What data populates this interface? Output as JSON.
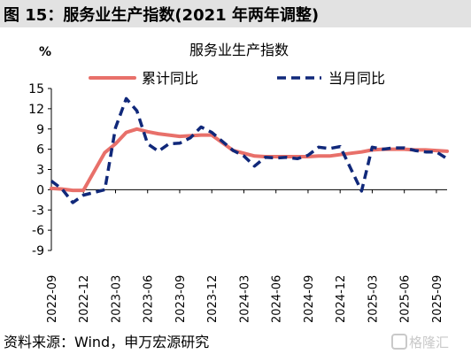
{
  "figure_title": "图 15：服务业生产指数(2021 年两年调整)",
  "source": "资料来源：Wind，申万宏源研究",
  "watermark": "格隆汇",
  "colors": {
    "cumulative": "#e8706a",
    "monthly": "#10287a",
    "header_bg": "#e2e2e2"
  },
  "chart_data": {
    "type": "line",
    "title": "服务业生产指数",
    "ylabel": "%",
    "ylim": [
      -9,
      15
    ],
    "yticks": [
      15,
      12,
      9,
      6,
      3,
      0,
      -3,
      -6,
      -9
    ],
    "grid": false,
    "legend_position": "top",
    "x_start": "2022-09",
    "x_end": "2025-10",
    "xticks": [
      "2022-09",
      "2022-12",
      "2023-03",
      "2023-06",
      "2023-09",
      "2023-12",
      "2024-03",
      "2024-06",
      "2024-09",
      "2024-12",
      "2025-03",
      "2025-06",
      "2025-09"
    ],
    "series": [
      {
        "name": "累计同比",
        "style": "solid",
        "points": [
          [
            "2022-09",
            0.2
          ],
          [
            "2022-10",
            0.1
          ],
          [
            "2022-11",
            -0.1
          ],
          [
            "2022-12",
            -0.1
          ],
          [
            "2023-02",
            5.5
          ],
          [
            "2023-03",
            6.8
          ],
          [
            "2023-04",
            8.5
          ],
          [
            "2023-05",
            9.0
          ],
          [
            "2023-06",
            8.6
          ],
          [
            "2023-07",
            8.3
          ],
          [
            "2023-08",
            8.1
          ],
          [
            "2023-09",
            7.9
          ],
          [
            "2023-10",
            8.0
          ],
          [
            "2023-11",
            8.1
          ],
          [
            "2023-12",
            8.1
          ],
          [
            "2024-02",
            5.8
          ],
          [
            "2024-03",
            5.4
          ],
          [
            "2024-04",
            5.0
          ],
          [
            "2024-05",
            4.9
          ],
          [
            "2024-06",
            4.9
          ],
          [
            "2024-07",
            4.9
          ],
          [
            "2024-08",
            4.9
          ],
          [
            "2024-09",
            4.9
          ],
          [
            "2024-10",
            5.0
          ],
          [
            "2024-11",
            5.0
          ],
          [
            "2024-12",
            5.2
          ],
          [
            "2025-02",
            5.6
          ],
          [
            "2025-03",
            5.9
          ],
          [
            "2025-04",
            6.0
          ],
          [
            "2025-05",
            6.0
          ],
          [
            "2025-06",
            6.0
          ],
          [
            "2025-07",
            5.9
          ],
          [
            "2025-08",
            5.9
          ],
          [
            "2025-09",
            5.8
          ],
          [
            "2025-10",
            5.7
          ]
        ]
      },
      {
        "name": "当月同比",
        "style": "dashed",
        "points": [
          [
            "2022-09",
            1.3
          ],
          [
            "2022-10",
            0.1
          ],
          [
            "2022-11",
            -1.9
          ],
          [
            "2022-12",
            -0.8
          ],
          [
            "2023-02",
            0.0
          ],
          [
            "2023-03",
            9.2
          ],
          [
            "2023-04",
            13.5
          ],
          [
            "2023-05",
            11.7
          ],
          [
            "2023-06",
            6.8
          ],
          [
            "2023-07",
            5.7
          ],
          [
            "2023-08",
            6.8
          ],
          [
            "2023-09",
            6.9
          ],
          [
            "2023-10",
            7.7
          ],
          [
            "2023-11",
            9.3
          ],
          [
            "2023-12",
            8.5
          ],
          [
            "2024-02",
            5.8
          ],
          [
            "2024-03",
            5.0
          ],
          [
            "2024-04",
            3.5
          ],
          [
            "2024-05",
            4.8
          ],
          [
            "2024-06",
            4.7
          ],
          [
            "2024-07",
            4.8
          ],
          [
            "2024-08",
            4.6
          ],
          [
            "2024-09",
            5.1
          ],
          [
            "2024-10",
            6.3
          ],
          [
            "2024-11",
            6.1
          ],
          [
            "2024-12",
            6.4
          ],
          [
            "2025-02",
            -0.2
          ],
          [
            "2025-03",
            6.3
          ],
          [
            "2025-04",
            6.0
          ],
          [
            "2025-05",
            6.2
          ],
          [
            "2025-06",
            6.2
          ],
          [
            "2025-07",
            5.8
          ],
          [
            "2025-08",
            5.6
          ],
          [
            "2025-09",
            5.6
          ],
          [
            "2025-10",
            4.6
          ]
        ]
      }
    ]
  }
}
